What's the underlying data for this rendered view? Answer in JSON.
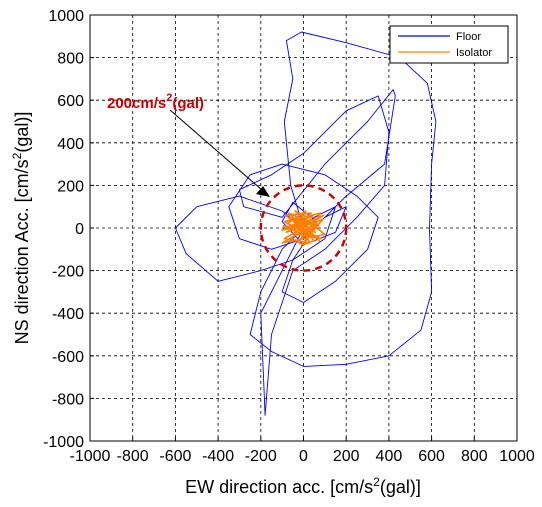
{
  "chart_data": {
    "type": "line",
    "xlabel": {
      "text": "EW direction acc. [cm/s",
      "sup": "2",
      "after": "(gal)]"
    },
    "ylabel": {
      "text": "NS direction Acc. [cm/s",
      "sup": "2",
      "after": "(gal)]"
    },
    "xlim": [
      -1000,
      1000
    ],
    "ylim": [
      -1000,
      1000
    ],
    "xticks": [
      -1000,
      -800,
      -600,
      -400,
      -200,
      0,
      200,
      400,
      600,
      800,
      1000
    ],
    "yticks": [
      -1000,
      -800,
      -600,
      -400,
      -200,
      0,
      200,
      400,
      600,
      800,
      1000
    ],
    "grid": true,
    "legend": "upper right",
    "annotation": {
      "text": "200cm/s",
      "sup": "2",
      "after": "(gal)",
      "radius": 200,
      "color": "#cc0000"
    },
    "series": [
      {
        "name": "Floor",
        "color": "#0000ff",
        "x": [
          0,
          -60,
          -90,
          -50,
          -80,
          -10,
          200,
          450,
          580,
          620,
          600,
          590,
          600,
          550,
          400,
          200,
          0,
          -150,
          -250,
          -200,
          -100,
          50,
          150,
          100,
          -50,
          -200,
          -400,
          -550,
          -600,
          -500,
          -300,
          -100,
          0,
          -200,
          -180,
          -150,
          -50,
          100,
          250,
          380,
          400,
          350,
          200,
          0,
          -150,
          -300,
          -280,
          -100,
          100,
          300,
          420,
          430,
          380,
          200,
          50,
          -50,
          -100,
          0,
          150,
          300,
          350,
          250,
          100,
          -100,
          -250,
          -350,
          -300,
          -150,
          0,
          100,
          200,
          150,
          0,
          -100,
          -50,
          50
        ],
        "y": [
          0,
          200,
          500,
          700,
          880,
          920,
          870,
          800,
          680,
          500,
          300,
          0,
          -300,
          -480,
          -600,
          -640,
          -650,
          -580,
          -500,
          -300,
          -100,
          50,
          100,
          -50,
          -150,
          -200,
          -250,
          -120,
          0,
          100,
          150,
          80,
          0,
          -400,
          -880,
          -500,
          -200,
          -100,
          50,
          200,
          450,
          620,
          550,
          350,
          250,
          180,
          100,
          50,
          300,
          500,
          650,
          620,
          300,
          150,
          0,
          -150,
          -300,
          -350,
          -250,
          -100,
          50,
          150,
          250,
          300,
          250,
          100,
          -50,
          -100,
          -50,
          50,
          100,
          -20,
          -80,
          30,
          120,
          40
        ]
      },
      {
        "name": "Isolator",
        "color": "#ff8000",
        "x": [
          0,
          -60,
          40,
          -90,
          80,
          -20,
          60,
          -100,
          100,
          -40,
          20,
          -80,
          90,
          -10,
          50,
          -70,
          70,
          -30,
          30,
          -90,
          95,
          -50,
          10,
          -75,
          85,
          -25,
          45,
          -100,
          65,
          0,
          -55,
          35,
          -85,
          75,
          -15,
          55,
          -65,
          25,
          -95,
          5
        ],
        "y": [
          0,
          60,
          -40,
          30,
          70,
          -60,
          20,
          -70,
          -30,
          80,
          50,
          -20,
          40,
          -80,
          -60,
          70,
          10,
          40,
          -70,
          -50,
          60,
          0,
          80,
          20,
          -50,
          -30,
          60,
          -10,
          30,
          -80,
          -50,
          70,
          60,
          -60,
          30,
          -20,
          50,
          -40,
          10,
          0
        ]
      }
    ]
  }
}
